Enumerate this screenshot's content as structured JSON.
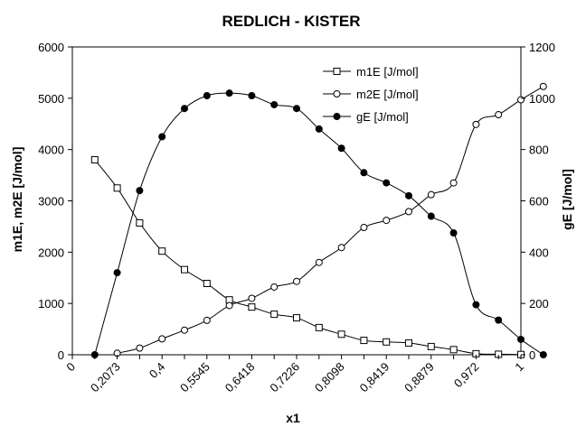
{
  "chart_data": {
    "type": "line",
    "title": "REDLICH - KISTER",
    "xlabel": "x1",
    "ylabel_left": "m1E, m2E [J/mol]",
    "ylabel_right": "gE [J/mol]",
    "x_tick_labels": [
      "0",
      "0,2073",
      "0,4",
      "0,5545",
      "0,6418",
      "0,7226",
      "0,8098",
      "0,8419",
      "0,8879",
      "0,972",
      "1"
    ],
    "y_left_ticks": [
      "0",
      "1000",
      "2000",
      "3000",
      "4000",
      "5000",
      "6000"
    ],
    "y_right_ticks": [
      "0",
      "200",
      "400",
      "600",
      "800",
      "1000",
      "1200"
    ],
    "y_left_range": [
      0,
      6000
    ],
    "y_right_range": [
      0,
      1200
    ],
    "x_positions_note_free": true,
    "series": [
      {
        "name": "m1E [J/mol]",
        "axis": "left",
        "marker": "open-square",
        "x_index": [
          0.5,
          1,
          1.5,
          2,
          2.5,
          3,
          3.5,
          4,
          4.5,
          5,
          5.5,
          6,
          6.5,
          7,
          7.5,
          8,
          8.5,
          9,
          9.5,
          10
        ],
        "values": [
          3800,
          3250,
          2570,
          2020,
          1660,
          1390,
          1070,
          930,
          790,
          720,
          530,
          400,
          280,
          250,
          230,
          160,
          100,
          20,
          10,
          5
        ]
      },
      {
        "name": "m2E [J/mol]",
        "axis": "left",
        "marker": "open-circle",
        "x_index": [
          1,
          1.5,
          2,
          2.5,
          3,
          3.5,
          4,
          4.5,
          5,
          5.5,
          6,
          6.5,
          7,
          7.5,
          8,
          8.5,
          9,
          9.5,
          10,
          10.5
        ],
        "values": [
          30,
          130,
          310,
          480,
          670,
          960,
          1100,
          1320,
          1430,
          1800,
          2090,
          2480,
          2620,
          2790,
          3120,
          3350,
          4490,
          4680,
          4970,
          5230
        ]
      },
      {
        "name": "gE [J/mol]",
        "axis": "right",
        "marker": "filled-circle",
        "x_index": [
          0.5,
          1,
          1.5,
          2,
          2.5,
          3,
          3.5,
          4,
          4.5,
          5,
          5.5,
          6,
          6.5,
          7,
          7.5,
          8,
          8.5,
          9,
          9.5,
          10,
          10.5
        ],
        "values": [
          0,
          320,
          640,
          850,
          960,
          1010,
          1020,
          1010,
          975,
          960,
          880,
          805,
          710,
          670,
          620,
          540,
          475,
          195,
          135,
          60,
          0
        ]
      }
    ],
    "legend_position": "top-right (inside plot)",
    "grid": false
  }
}
